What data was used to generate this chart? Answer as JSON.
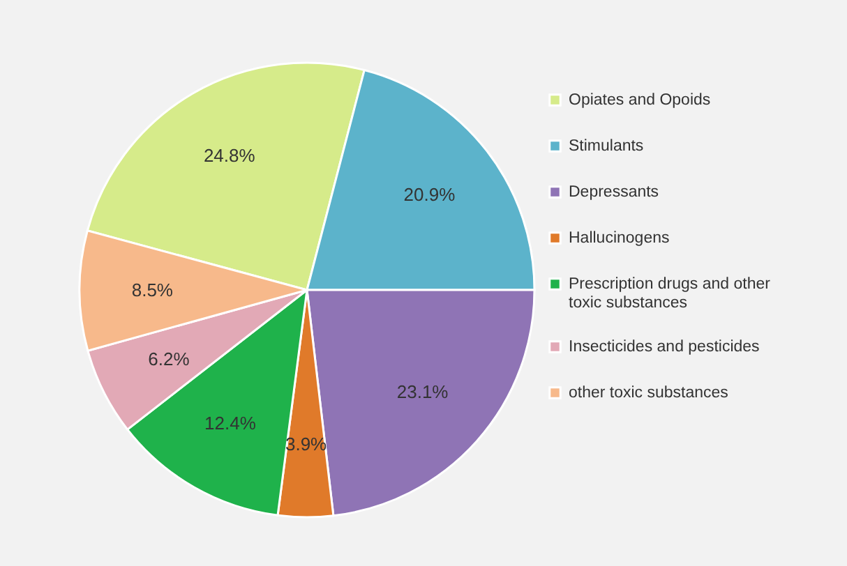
{
  "chart_data": {
    "type": "pie",
    "categories": [
      "Opiates and Opoids",
      "Stimulants",
      "Depressants",
      "Hallucinogens",
      "Prescription drugs and other toxic substances",
      "Insecticides and pesticides",
      "other toxic substances"
    ],
    "values": [
      24.8,
      20.9,
      23.1,
      3.9,
      12.4,
      6.2,
      8.5
    ],
    "colors": [
      "#d6eb8a",
      "#5cb3cb",
      "#8f74b5",
      "#e07a2a",
      "#1fb24b",
      "#e2a9b6",
      "#f7b98b"
    ],
    "value_labels": [
      "24.8%",
      "20.9%",
      "23.1%",
      "3.9%",
      "12.4%",
      "6.2%",
      "8.5%"
    ],
    "legend": "right"
  }
}
